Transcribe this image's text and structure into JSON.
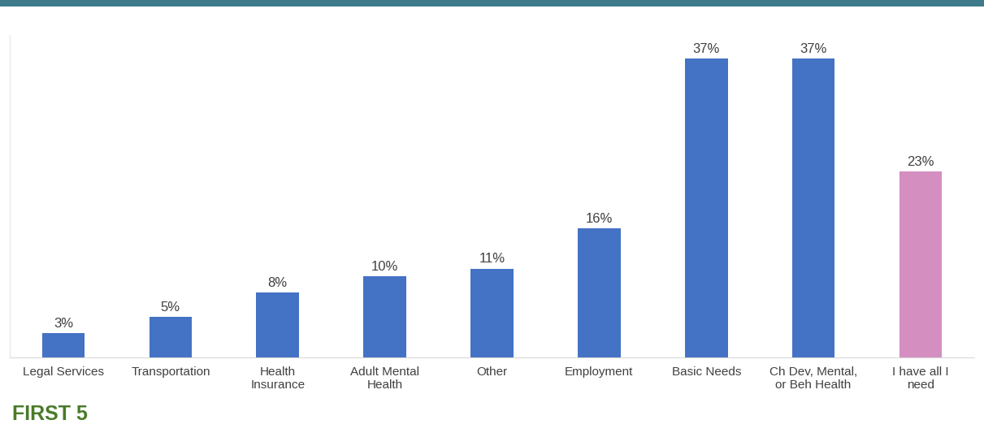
{
  "chart_data": {
    "type": "bar",
    "categories": [
      "Legal Services",
      "Transportation",
      "Health Insurance",
      "Adult Mental Health",
      "Other",
      "Employment",
      "Basic Needs",
      "Ch Dev, Mental, or Beh Health",
      "I have all I need"
    ],
    "values": [
      3,
      5,
      8,
      10,
      11,
      16,
      37,
      37,
      23
    ],
    "value_labels": [
      "3%",
      "5%",
      "8%",
      "10%",
      "11%",
      "16%",
      "37%",
      "37%",
      "23%"
    ],
    "colors": [
      "#4472c4",
      "#4472c4",
      "#4472c4",
      "#4472c4",
      "#4472c4",
      "#4472c4",
      "#4472c4",
      "#4472c4",
      "#d48ec0"
    ],
    "ylim": [
      0,
      40
    ],
    "yticks": [],
    "grid": false,
    "data_labels": true,
    "tick_labels": "x",
    "annotations": [
      "FIRST 5"
    ]
  }
}
